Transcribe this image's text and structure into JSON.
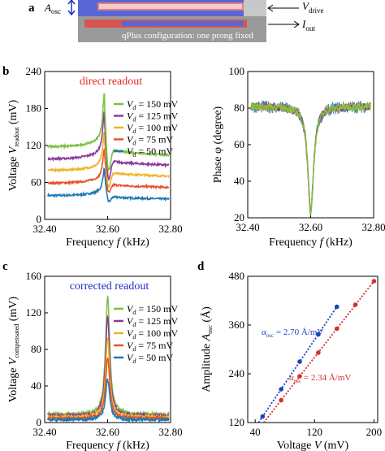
{
  "colors": {
    "v150": "#7cc242",
    "v125": "#8b3a9e",
    "v100": "#f0b323",
    "v75": "#e5532a",
    "v50": "#1f78b4",
    "phase_noise": "#3d86c6",
    "fit_blue": "#1e3fbf",
    "fit_red": "#d62e2e",
    "red_text": "#e8262a",
    "blue_text": "#1f2fc9",
    "diagram_red": "#d9534f",
    "diagram_blue": "#5a66d6",
    "diagram_gray": "#9a9a9a"
  },
  "panel_a": {
    "letter": "a",
    "aosc_label": "A",
    "aosc_sub": "osc",
    "vdrive_label": "V",
    "vdrive_sub": "drive",
    "iout_label": "I",
    "iout_sub": "out",
    "config_label": "qPlus configuration: one prong fixed"
  },
  "legend_labels": [
    "V",
    "V",
    "V",
    "V",
    "V"
  ],
  "legend_sub": "d",
  "legend_values": [
    "= 150 mV",
    "= 125 mV",
    "= 100 mV",
    "= 75 mV",
    "= 50 mV"
  ],
  "chart_data": [
    {
      "panel": "b (left)",
      "type": "line",
      "title": "direct readout",
      "xlabel": "Frequency f (kHz)",
      "ylabel": "Voltage V_readout (mV)",
      "ylabel_main": "Voltage ",
      "ylabel_v": "V",
      "ylabel_sub": "readout",
      "ylabel_unit": " (mV)",
      "xlim": [
        32.4,
        32.8
      ],
      "ylim": [
        0,
        240
      ],
      "xticks": [
        "32.40",
        "32.60",
        "32.80"
      ],
      "yticks": [
        "0",
        "60",
        "120",
        "180",
        "240"
      ],
      "legend_position": "top-right",
      "series": [
        {
          "name": "Vd = 150 mV",
          "baseline": 117,
          "end": 104,
          "peak": 200,
          "dip": 72
        },
        {
          "name": "Vd = 125 mV",
          "baseline": 97,
          "end": 88,
          "peak": 170,
          "dip": 58
        },
        {
          "name": "Vd = 100 mV",
          "baseline": 79,
          "end": 70,
          "peak": 138,
          "dip": 47
        },
        {
          "name": "Vd = 75 mV",
          "baseline": 58,
          "end": 52,
          "peak": 110,
          "dip": 38
        },
        {
          "name": "Vd = 50 mV",
          "baseline": 38,
          "end": 33,
          "peak": 78,
          "dip": 25
        }
      ],
      "resonance_khz": 32.59
    },
    {
      "panel": "b (right)",
      "type": "line",
      "xlabel": "Frequency f (kHz)",
      "ylabel": "Phase φ (degree)",
      "xlim": [
        32.4,
        32.8
      ],
      "ylim": [
        20,
        100
      ],
      "xticks": [
        "32.40",
        "32.60",
        "32.80"
      ],
      "yticks": [
        "20",
        "40",
        "60",
        "80",
        "100"
      ],
      "baseline_deg": 81,
      "min_deg": 23,
      "resonance_khz": 32.6
    },
    {
      "panel": "c",
      "type": "line",
      "title": "corrected readout",
      "xlabel": "Frequency f (kHz)",
      "ylabel": "Voltage V_compensated (mV)",
      "ylabel_main": "Voltage ",
      "ylabel_v": "V",
      "ylabel_sub": "compensated",
      "ylabel_unit": " (mV)",
      "xlim": [
        32.4,
        32.8
      ],
      "ylim": [
        0,
        160
      ],
      "xticks": [
        "32.40",
        "32.60",
        "32.80"
      ],
      "yticks": [
        "0",
        "40",
        "80",
        "120",
        "160"
      ],
      "legend_position": "top-right",
      "series": [
        {
          "name": "Vd = 150 mV",
          "baseline": 9,
          "peak": 139
        },
        {
          "name": "Vd = 125 mV",
          "baseline": 7.5,
          "peak": 116
        },
        {
          "name": "Vd = 100 mV",
          "baseline": 6,
          "peak": 93
        },
        {
          "name": "Vd = 75 mV",
          "baseline": 4.5,
          "peak": 70
        },
        {
          "name": "Vd = 50 mV",
          "baseline": 3,
          "peak": 47
        }
      ],
      "resonance_khz": 32.6
    },
    {
      "panel": "d",
      "type": "scatter",
      "xlabel": "Voltage V (mV)",
      "ylabel": "Amplitude A_osc (Å)",
      "ylabel_main": "Amplitude ",
      "ylabel_v": "A",
      "ylabel_sub": "osc",
      "ylabel_unit": " (Å)",
      "xlim": [
        30,
        205
      ],
      "ylim": [
        120,
        480
      ],
      "xticks": [
        "40",
        "120",
        "200"
      ],
      "yticks": [
        "120",
        "240",
        "360",
        "480"
      ],
      "series": [
        {
          "name": "α_osc = 2.70 Å/mV",
          "label_alpha": "α",
          "label_sub": "osc",
          "label_val": "= 2.70 Å/mV",
          "x": [
            50,
            75,
            100,
            125,
            150
          ],
          "y": [
            135,
            202,
            270,
            337,
            405
          ]
        },
        {
          "name": "α_osc = 2.34 Å/mV",
          "label_alpha": "α",
          "label_sub": "osc",
          "label_val": "= 2.34 Å/mV",
          "x": [
            75,
            100,
            125,
            150,
            175,
            200
          ],
          "y": [
            175,
            234,
            292,
            351,
            410,
            468
          ]
        }
      ]
    }
  ],
  "panel_letters": {
    "b": "b",
    "c": "c",
    "d": "d"
  }
}
